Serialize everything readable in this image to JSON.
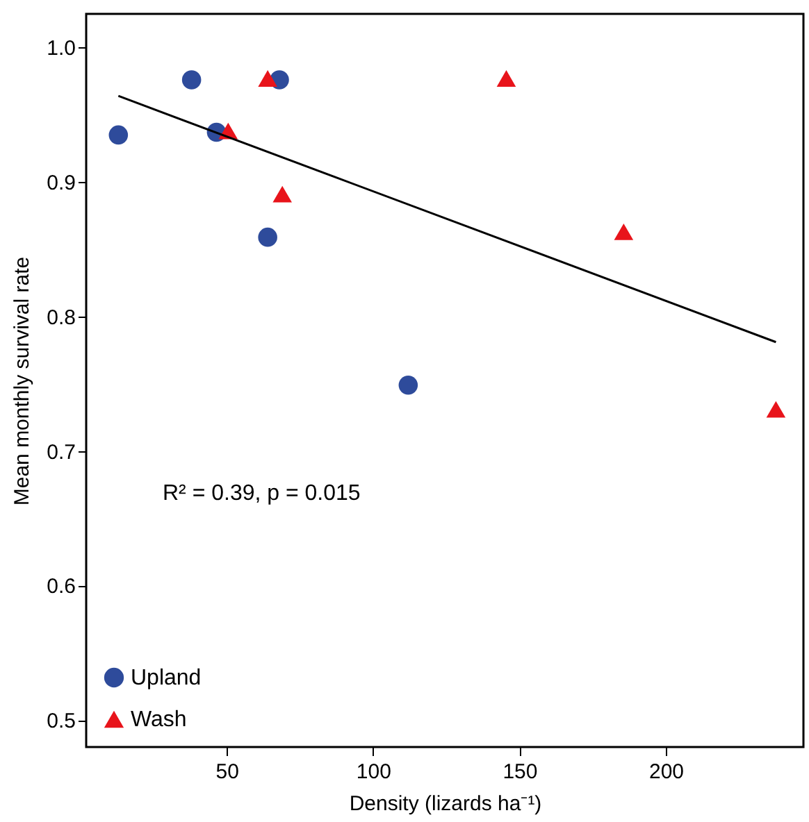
{
  "chart_data": {
    "type": "scatter",
    "xlabel": "Density (lizards ha⁻¹)",
    "ylabel": "Mean monthly survival rate",
    "xlim": [
      2,
      247
    ],
    "ylim": [
      0.48,
      1.025
    ],
    "xticks": [
      50,
      100,
      150,
      200
    ],
    "yticks": [
      {
        "value": 0.5,
        "label": "0.5"
      },
      {
        "value": 0.6,
        "label": "0.6"
      },
      {
        "value": 0.7,
        "label": "0.7"
      },
      {
        "value": 0.8,
        "label": "0.8"
      },
      {
        "value": 0.9,
        "label": "0.9"
      },
      {
        "value": 1,
        "label": "1.0"
      }
    ],
    "grid": false,
    "legend": "bottom left",
    "annotations": [
      "R² = 0.39, p = 0.015"
    ],
    "series": [
      {
        "name": "Upland",
        "color": "#2e4b9b",
        "marker": "circle",
        "x": [
          13,
          38,
          46.5,
          68,
          64,
          112
        ],
        "values": [
          0.935,
          0.976,
          0.937,
          0.976,
          0.859,
          0.749
        ]
      },
      {
        "name": "Wash",
        "color": "#e8141b",
        "marker": "triangle",
        "x": [
          64,
          50.5,
          69,
          145.5,
          185.6,
          237.6
        ],
        "values": [
          0.977,
          0.938,
          0.891,
          0.977,
          0.863,
          0.731
        ]
      },
      {
        "type": "line",
        "color": "#000000",
        "x": [
          13,
          237.6
        ],
        "values": [
          0.964,
          0.781
        ]
      }
    ]
  }
}
